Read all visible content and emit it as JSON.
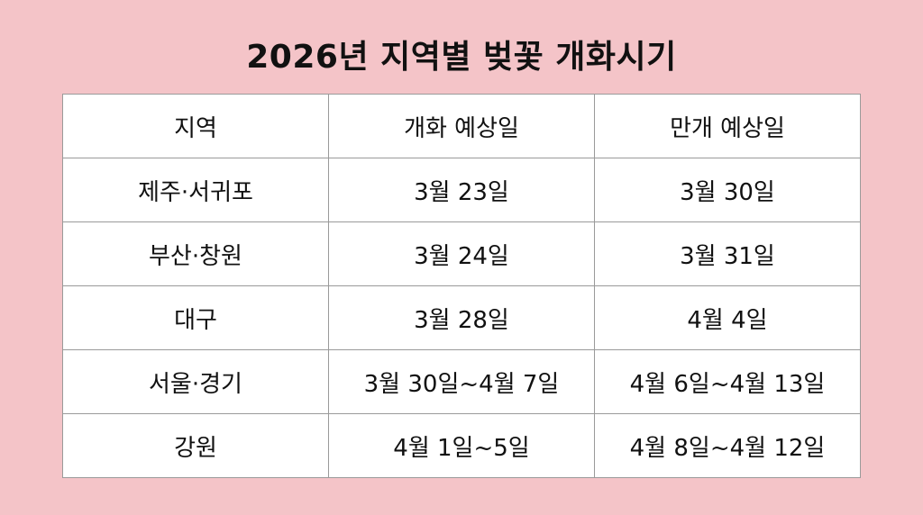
{
  "title": "2026년 지역별 벚꽃 개화시기",
  "table": {
    "headers": [
      "지역",
      "개화 예상일",
      "만개 예상일"
    ],
    "rows": [
      [
        "제주·서귀포",
        "3월 23일",
        "3월 30일"
      ],
      [
        "부산·창원",
        "3월 24일",
        "3월 31일"
      ],
      [
        "대구",
        "3월 28일",
        "4월 4일"
      ],
      [
        "서울·경기",
        "3월 30일~4월 7일",
        "4월 6일~4월 13일"
      ],
      [
        "강원",
        "4월 1일~5일",
        "4월 8일~4월 12일"
      ]
    ]
  },
  "colors": {
    "background": "#f4c4c8",
    "table": "#ffffff",
    "border": "#9a9a9a"
  }
}
